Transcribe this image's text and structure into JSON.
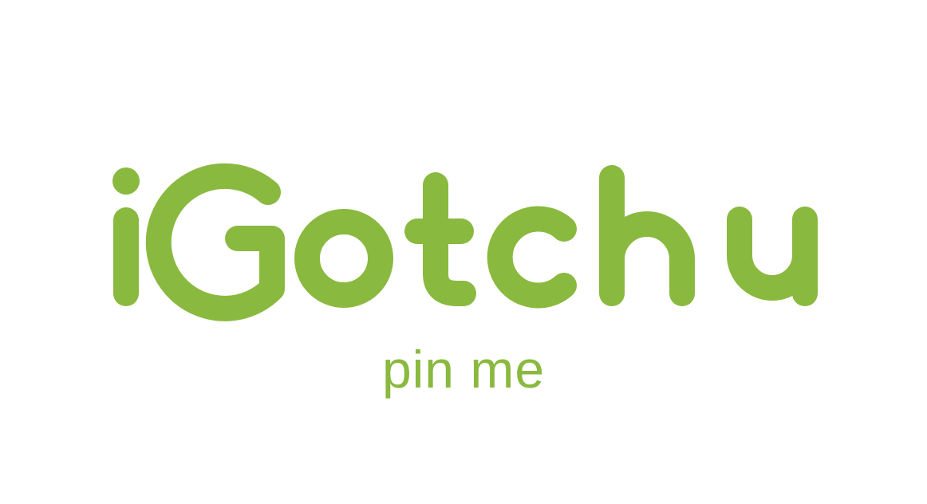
{
  "brand": {
    "wordmark": "iGotchu",
    "tagline": "pin me"
  },
  "colors": {
    "background": "#ffffff",
    "brand_green": "#8ab93f"
  }
}
